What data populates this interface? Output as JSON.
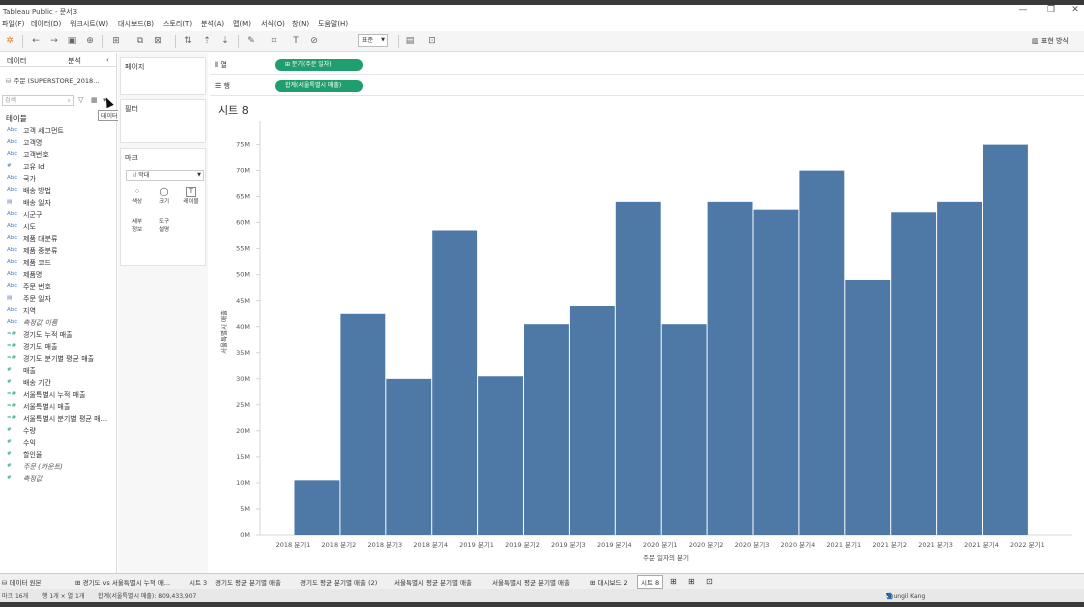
{
  "window": {
    "title": "Tableau Public - 문서3",
    "controls": [
      "—",
      "❐",
      "✕"
    ]
  },
  "menu": [
    "파일(F)",
    "데이터(D)",
    "워크시트(W)",
    "대시보드(B)",
    "스토리(T)",
    "분석(A)",
    "맵(M)",
    "서식(O)",
    "창(N)",
    "도움말(H)"
  ],
  "toolbar": {
    "fit": "표준",
    "show_me": "표현 방식"
  },
  "data_pane": {
    "tabs": [
      "데이터",
      "분석"
    ],
    "collapse": "‹",
    "source": "주문 (SUPERSTORE_2018...",
    "search_placeholder": "검색",
    "tooltip": "데이터 보기",
    "tables_label": "테이블",
    "dimensions": [
      {
        "type": "Abc",
        "name": "고객 세그먼트"
      },
      {
        "type": "Abc",
        "name": "고객명"
      },
      {
        "type": "Abc",
        "name": "고객번호"
      },
      {
        "type": "#",
        "name": "고유 Id"
      },
      {
        "type": "Abc",
        "name": "국가"
      },
      {
        "type": "Abc",
        "name": "배송 방법"
      },
      {
        "type": "▤",
        "name": "배송 일자"
      },
      {
        "type": "Abc",
        "name": "시군구"
      },
      {
        "type": "Abc",
        "name": "시도"
      },
      {
        "type": "Abc",
        "name": "제품 대분류"
      },
      {
        "type": "Abc",
        "name": "제품 중분류"
      },
      {
        "type": "Abc",
        "name": "제품 코드"
      },
      {
        "type": "Abc",
        "name": "제품명"
      },
      {
        "type": "Abc",
        "name": "주문 번호"
      },
      {
        "type": "▤",
        "name": "주문 일자"
      },
      {
        "type": "Abc",
        "name": "지역"
      },
      {
        "type": "Abc",
        "name": "측정값 이름",
        "italic": true
      }
    ],
    "measures": [
      {
        "type": "=#",
        "name": "경기도 누적 매출"
      },
      {
        "type": "=#",
        "name": "경기도 매출"
      },
      {
        "type": "=#",
        "name": "경기도 분기별 평균 매출"
      },
      {
        "type": "#",
        "name": "매출"
      },
      {
        "type": "#",
        "name": "배송 기간"
      },
      {
        "type": "=#",
        "name": "서울특별시 누적 매출"
      },
      {
        "type": "=#",
        "name": "서울특별시 매출"
      },
      {
        "type": "=#",
        "name": "서울특별시 분기별 평균 매..."
      },
      {
        "type": "#",
        "name": "수량"
      },
      {
        "type": "#",
        "name": "수익"
      },
      {
        "type": "#",
        "name": "할인율"
      },
      {
        "type": "#",
        "name": "주문 (카운트)",
        "italic": true
      },
      {
        "type": "#",
        "name": "측정값",
        "italic": true
      }
    ]
  },
  "cards": {
    "pages": "페이지",
    "filters": "필터",
    "marks": "마크",
    "mark_type": "막대",
    "buttons": [
      {
        "icon": "⁘",
        "label": "색상"
      },
      {
        "icon": "◯",
        "label": "크기"
      },
      {
        "icon": "T",
        "label": "레이블"
      },
      {
        "icon": "",
        "label": "세부 정보"
      },
      {
        "icon": "",
        "label": "도구 설명"
      }
    ]
  },
  "shelves": {
    "columns_label": "열",
    "rows_label": "행",
    "columns_pill": "⊞ 분기(주문 일자)",
    "rows_pill": "합계(서울특별시 매출)"
  },
  "sheet": {
    "title": "시트 8"
  },
  "chart_data": {
    "type": "bar",
    "xlabel": "주문 일자의 분기",
    "ylabel": "서울특별시 매출",
    "categories": [
      "2018 분기1",
      "2018 분기2",
      "2018 분기3",
      "2018 분기4",
      "2019 분기1",
      "2019 분기2",
      "2019 분기3",
      "2019 분기4",
      "2020 분기1",
      "2020 분기2",
      "2020 분기3",
      "2020 분기4",
      "2021 분기1",
      "2021 분기2",
      "2021 분기3",
      "2021 분기4",
      "2022 분기1"
    ],
    "values": [
      10.5,
      42.5,
      30,
      58.5,
      30.5,
      40.5,
      44,
      64,
      40.5,
      64,
      62.5,
      70,
      49,
      62,
      64,
      75,
      null
    ],
    "ylim": [
      0,
      78
    ],
    "yticks": [
      0,
      5,
      10,
      15,
      20,
      25,
      30,
      35,
      40,
      45,
      50,
      55,
      60,
      65,
      70,
      75
    ],
    "ytick_labels": [
      "0M",
      "5M",
      "10M",
      "15M",
      "20M",
      "25M",
      "30M",
      "35M",
      "40M",
      "45M",
      "50M",
      "55M",
      "60M",
      "65M",
      "70M",
      "75M"
    ],
    "color": "#4e79a7"
  },
  "sheet_tabs": {
    "data_source": "데이터 원본",
    "tabs": [
      "경기도 vs 서울특별시 누적 매...",
      "시트 3",
      "경기도 평균 분기별 매출",
      "경기도 평균 분기별 매출 (2)",
      "서울특별시 평균 분기별 매출",
      "서울특별시 평균 분기별 매출",
      "대시보드 2",
      "시트 8"
    ],
    "active": "시트 8"
  },
  "status": {
    "marks": "마크 16개",
    "rows": "행 1개 × 열 1개",
    "sum": "합계(서울특별시 매출): 809,433,907",
    "user": "Seungil Kang"
  }
}
